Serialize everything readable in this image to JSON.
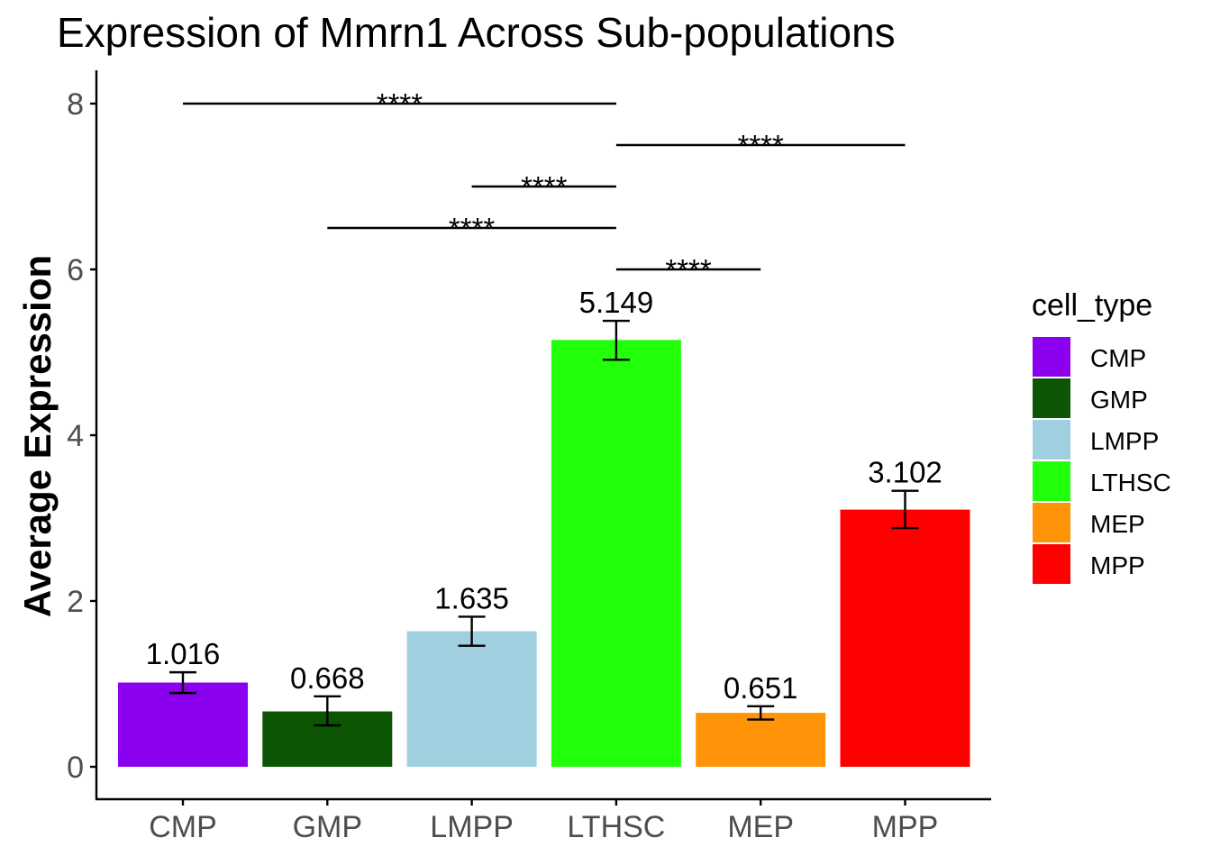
{
  "chart_data": {
    "type": "bar",
    "title": "Expression of Mmrn1 Across Sub-populations",
    "xlabel": "",
    "ylabel": "Average Expression",
    "ylim": [
      0,
      8.4
    ],
    "yticks": [
      0,
      2,
      4,
      6,
      8
    ],
    "categories": [
      "CMP",
      "GMP",
      "LMPP",
      "LTHSC",
      "MEP",
      "MPP"
    ],
    "values": [
      1.016,
      0.668,
      1.635,
      5.149,
      0.651,
      3.102
    ],
    "value_labels": [
      "1.016",
      "0.668",
      "1.635",
      "5.149",
      "0.651",
      "3.102"
    ],
    "errors": [
      {
        "low": 0.89,
        "high": 1.14
      },
      {
        "low": 0.5,
        "high": 0.85
      },
      {
        "low": 1.46,
        "high": 1.81
      },
      {
        "low": 4.91,
        "high": 5.38
      },
      {
        "low": 0.57,
        "high": 0.73
      },
      {
        "low": 2.88,
        "high": 3.33
      }
    ],
    "colors": [
      "#8B00EE",
      "#0B5504",
      "#A0CFE0",
      "#22FF0A",
      "#FF9408",
      "#FF0000"
    ],
    "legend": {
      "title": "cell_type",
      "position": "right",
      "items": [
        "CMP",
        "GMP",
        "LMPP",
        "LTHSC",
        "MEP",
        "MPP"
      ]
    },
    "significance": [
      {
        "from": "CMP",
        "to": "LTHSC",
        "y": 8.0,
        "label": "****"
      },
      {
        "from": "LTHSC",
        "to": "MPP",
        "y": 7.5,
        "label": "****"
      },
      {
        "from": "LMPP",
        "to": "LTHSC",
        "y": 7.0,
        "label": "****"
      },
      {
        "from": "GMP",
        "to": "LTHSC",
        "y": 6.5,
        "label": "****"
      },
      {
        "from": "LTHSC",
        "to": "MEP",
        "y": 6.0,
        "label": "****"
      }
    ],
    "grid": false
  }
}
